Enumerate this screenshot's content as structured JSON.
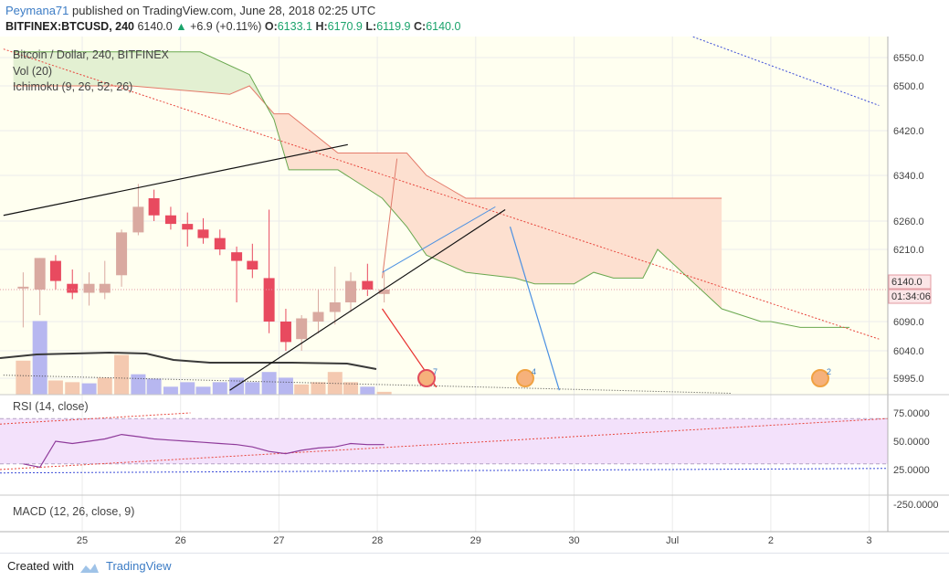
{
  "header": {
    "author": "Peymana71",
    "published_text": "published on TradingView.com, June 28, 2018 02:25 UTC",
    "symbol": "BITFINEX:BTCUSD, 240",
    "last": "6140.0",
    "change": "+6.9 (+0.11%)",
    "open_label": "O:",
    "open": "6133.1",
    "high_label": "H:",
    "high": "6170.9",
    "low_label": "L:",
    "low": "6119.9",
    "close_label": "C:",
    "close": "6140.0"
  },
  "legend": {
    "main": "Bitcoin / Dollar, 240, BITFINEX",
    "vol": "Vol (20)",
    "ichimoku": "Ichimoku (9, 26, 52, 26)",
    "rsi": "RSI (14, close)",
    "macd": "MACD (12, 26, close, 9)"
  },
  "price_badge": "6140.0",
  "countdown_badge": "01:34:06",
  "event_badges": [
    "7",
    "4",
    "2"
  ],
  "footer": {
    "created_with": "Created with",
    "brand": "TradingView"
  },
  "colors": {
    "bull": "#d9a9a0",
    "bear": "#e84a5f",
    "cloud_green": "#e3f0d2",
    "cloud_red": "#fde0d0",
    "rsi_band": "#f3e1fb",
    "background": "#fffff0"
  },
  "chart_data": [
    {
      "type": "candlestick",
      "title": "Bitcoin / Dollar, 240, BITFINEX",
      "x_ticks": [
        "25",
        "26",
        "27",
        "28",
        "29",
        "30",
        "Jul",
        "2",
        "3"
      ],
      "y_ticks": [
        "6550.0",
        "6500.0",
        "6420.0",
        "6340.0",
        "6260.0",
        "6210.0",
        "6140.0",
        "6090.0",
        "6040.0",
        "5995.0"
      ],
      "ylim": [
        5975,
        6590
      ],
      "candles": [
        {
          "x": 24.4,
          "o": 6145,
          "h": 6170,
          "l": 6080,
          "c": 6145
        },
        {
          "x": 24.57,
          "o": 6140,
          "h": 6195,
          "l": 6100,
          "c": 6195
        },
        {
          "x": 24.73,
          "o": 6190,
          "h": 6200,
          "l": 6140,
          "c": 6155
        },
        {
          "x": 24.9,
          "o": 6150,
          "h": 6175,
          "l": 6125,
          "c": 6135
        },
        {
          "x": 25.07,
          "o": 6135,
          "h": 6170,
          "l": 6115,
          "c": 6150
        },
        {
          "x": 25.23,
          "o": 6135,
          "h": 6190,
          "l": 6125,
          "c": 6150
        },
        {
          "x": 25.4,
          "o": 6165,
          "h": 6245,
          "l": 6145,
          "c": 6240
        },
        {
          "x": 25.57,
          "o": 6240,
          "h": 6325,
          "l": 6235,
          "c": 6285
        },
        {
          "x": 25.73,
          "o": 6300,
          "h": 6315,
          "l": 6260,
          "c": 6270
        },
        {
          "x": 25.9,
          "o": 6270,
          "h": 6285,
          "l": 6245,
          "c": 6255
        },
        {
          "x": 26.07,
          "o": 6255,
          "h": 6275,
          "l": 6215,
          "c": 6245
        },
        {
          "x": 26.23,
          "o": 6245,
          "h": 6265,
          "l": 6220,
          "c": 6230
        },
        {
          "x": 26.4,
          "o": 6230,
          "h": 6245,
          "l": 6200,
          "c": 6210
        },
        {
          "x": 26.57,
          "o": 6205,
          "h": 6215,
          "l": 6120,
          "c": 6190
        },
        {
          "x": 26.73,
          "o": 6190,
          "h": 6220,
          "l": 6160,
          "c": 6175
        },
        {
          "x": 26.9,
          "o": 6160,
          "h": 6280,
          "l": 6070,
          "c": 6090
        },
        {
          "x": 27.07,
          "o": 6090,
          "h": 6110,
          "l": 6040,
          "c": 6055
        },
        {
          "x": 27.23,
          "o": 6060,
          "h": 6100,
          "l": 6040,
          "c": 6095
        },
        {
          "x": 27.4,
          "o": 6090,
          "h": 6140,
          "l": 6070,
          "c": 6105
        },
        {
          "x": 27.57,
          "o": 6105,
          "h": 6180,
          "l": 6085,
          "c": 6120
        },
        {
          "x": 27.73,
          "o": 6120,
          "h": 6170,
          "l": 6105,
          "c": 6155
        },
        {
          "x": 27.9,
          "o": 6155,
          "h": 6185,
          "l": 6130,
          "c": 6140
        },
        {
          "x": 28.07,
          "o": 6133.1,
          "h": 6170.9,
          "l": 6119.9,
          "c": 6140.0
        }
      ],
      "volume": [
        {
          "x": 24.4,
          "v": 60,
          "bull": false
        },
        {
          "x": 24.57,
          "v": 130,
          "bull": true
        },
        {
          "x": 24.73,
          "v": 25,
          "bull": false
        },
        {
          "x": 24.9,
          "v": 22,
          "bull": false
        },
        {
          "x": 25.07,
          "v": 20,
          "bull": true
        },
        {
          "x": 25.23,
          "v": 30,
          "bull": false
        },
        {
          "x": 25.4,
          "v": 70,
          "bull": false
        },
        {
          "x": 25.57,
          "v": 36,
          "bull": true
        },
        {
          "x": 25.73,
          "v": 28,
          "bull": true
        },
        {
          "x": 25.9,
          "v": 14,
          "bull": true
        },
        {
          "x": 26.07,
          "v": 22,
          "bull": true
        },
        {
          "x": 26.23,
          "v": 14,
          "bull": true
        },
        {
          "x": 26.4,
          "v": 22,
          "bull": true
        },
        {
          "x": 26.57,
          "v": 30,
          "bull": true
        },
        {
          "x": 26.73,
          "v": 22,
          "bull": true
        },
        {
          "x": 26.9,
          "v": 40,
          "bull": true
        },
        {
          "x": 27.07,
          "v": 30,
          "bull": true
        },
        {
          "x": 27.23,
          "v": 18,
          "bull": false
        },
        {
          "x": 27.4,
          "v": 22,
          "bull": false
        },
        {
          "x": 27.57,
          "v": 40,
          "bull": false
        },
        {
          "x": 27.73,
          "v": 22,
          "bull": false
        },
        {
          "x": 27.9,
          "v": 14,
          "bull": true
        },
        {
          "x": 28.07,
          "v": 5,
          "bull": false
        }
      ],
      "cloud_upper": [
        [
          24.3,
          6500
        ],
        [
          25.5,
          6500
        ],
        [
          26.5,
          6485
        ],
        [
          26.7,
          6500
        ],
        [
          26.95,
          6450
        ],
        [
          27.1,
          6450
        ],
        [
          27.6,
          6380
        ],
        [
          28.3,
          6380
        ],
        [
          28.5,
          6340
        ],
        [
          28.7,
          6320
        ],
        [
          28.9,
          6300
        ],
        [
          31.5,
          6300
        ]
      ],
      "cloud_lower": [
        [
          24.3,
          6560
        ],
        [
          26.2,
          6560
        ],
        [
          26.7,
          6520
        ],
        [
          26.95,
          6440
        ],
        [
          27.1,
          6350
        ],
        [
          27.6,
          6350
        ],
        [
          28.05,
          6300
        ],
        [
          28.3,
          6250
        ],
        [
          28.5,
          6200
        ],
        [
          28.9,
          6170
        ],
        [
          29.4,
          6160
        ],
        [
          29.6,
          6150
        ],
        [
          30.0,
          6150
        ],
        [
          30.2,
          6170
        ],
        [
          30.4,
          6160
        ],
        [
          30.7,
          6160
        ],
        [
          30.85,
          6210
        ],
        [
          31.1,
          6170
        ],
        [
          31.5,
          6110
        ],
        [
          31.9,
          6090
        ],
        [
          32.0,
          6090
        ],
        [
          32.3,
          6080
        ],
        [
          32.8,
          6080
        ]
      ],
      "rsi_ticks": [
        "75.0000",
        "50.0000",
        "25.0000"
      ],
      "rsi": [
        [
          24.4,
          30
        ],
        [
          24.57,
          27
        ],
        [
          24.73,
          50
        ],
        [
          24.9,
          48
        ],
        [
          25.07,
          50
        ],
        [
          25.23,
          52
        ],
        [
          25.4,
          56
        ],
        [
          25.57,
          54
        ],
        [
          25.73,
          52
        ],
        [
          25.9,
          51
        ],
        [
          26.07,
          50
        ],
        [
          26.23,
          49
        ],
        [
          26.4,
          48
        ],
        [
          26.57,
          47
        ],
        [
          26.73,
          45
        ],
        [
          26.9,
          41
        ],
        [
          27.07,
          39
        ],
        [
          27.23,
          42
        ],
        [
          27.4,
          44
        ],
        [
          27.57,
          45
        ],
        [
          27.73,
          48
        ],
        [
          27.9,
          47
        ],
        [
          28.07,
          47
        ]
      ],
      "macd_ticks": [
        "-250.0000"
      ]
    }
  ]
}
